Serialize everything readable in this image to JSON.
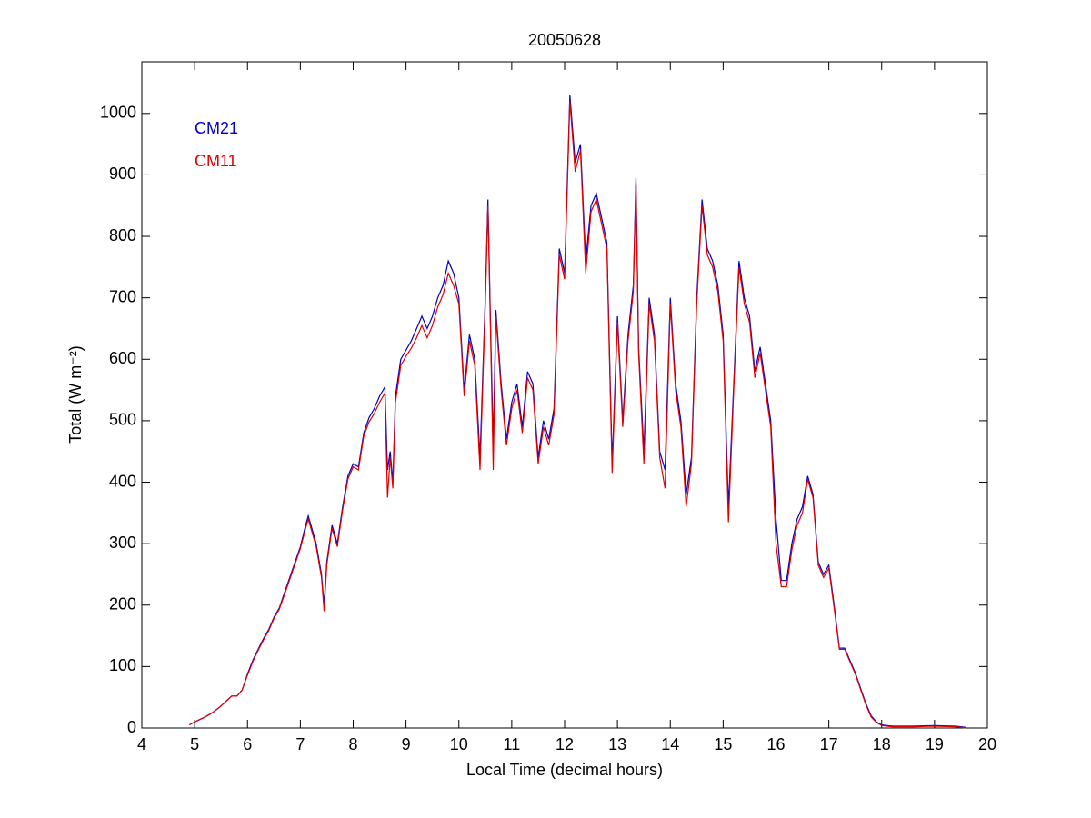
{
  "chart_data": {
    "type": "line",
    "title": "20050628",
    "xlabel": "Local Time (decimal hours)",
    "ylabel": "Total (W m⁻²)",
    "xlim": [
      4,
      20
    ],
    "xticks": [
      4,
      5,
      6,
      7,
      8,
      9,
      10,
      11,
      12,
      13,
      14,
      15,
      16,
      17,
      18,
      19,
      20
    ],
    "ylim": [
      0,
      1084
    ],
    "yticks": [
      0,
      100,
      200,
      300,
      400,
      500,
      600,
      700,
      800,
      900,
      1000
    ],
    "grid": false,
    "legend": "top-left",
    "x": [
      4.9,
      5.0,
      5.1,
      5.2,
      5.3,
      5.4,
      5.5,
      5.6,
      5.7,
      5.8,
      5.9,
      6.0,
      6.1,
      6.2,
      6.3,
      6.4,
      6.5,
      6.6,
      6.7,
      6.8,
      6.9,
      7.0,
      7.1,
      7.15,
      7.2,
      7.3,
      7.4,
      7.45,
      7.5,
      7.6,
      7.7,
      7.8,
      7.9,
      8.0,
      8.1,
      8.2,
      8.3,
      8.4,
      8.5,
      8.6,
      8.65,
      8.7,
      8.75,
      8.8,
      8.9,
      9.0,
      9.1,
      9.2,
      9.3,
      9.4,
      9.5,
      9.6,
      9.7,
      9.8,
      9.9,
      10.0,
      10.1,
      10.2,
      10.3,
      10.4,
      10.5,
      10.55,
      10.6,
      10.65,
      10.7,
      10.8,
      10.9,
      11.0,
      11.1,
      11.2,
      11.3,
      11.4,
      11.5,
      11.6,
      11.7,
      11.8,
      11.9,
      12.0,
      12.1,
      12.2,
      12.3,
      12.4,
      12.5,
      12.6,
      12.7,
      12.8,
      12.9,
      13.0,
      13.1,
      13.2,
      13.3,
      13.35,
      13.4,
      13.5,
      13.6,
      13.7,
      13.8,
      13.9,
      14.0,
      14.1,
      14.2,
      14.3,
      14.4,
      14.5,
      14.6,
      14.7,
      14.8,
      14.9,
      15.0,
      15.1,
      15.2,
      15.3,
      15.4,
      15.5,
      15.6,
      15.7,
      15.8,
      15.9,
      16.0,
      16.1,
      16.2,
      16.3,
      16.4,
      16.5,
      16.6,
      16.7,
      16.8,
      16.9,
      17.0,
      17.1,
      17.2,
      17.3,
      17.4,
      17.5,
      17.6,
      17.7,
      17.8,
      17.9,
      18.0,
      18.2,
      18.6,
      19.0,
      19.4,
      19.6
    ],
    "series": [
      {
        "name": "CM21",
        "color": "#0000c8",
        "values": [
          5,
          10,
          14,
          18,
          23,
          29,
          36,
          44,
          52,
          52,
          62,
          88,
          110,
          128,
          145,
          160,
          180,
          195,
          220,
          245,
          270,
          295,
          330,
          345,
          330,
          300,
          250,
          200,
          270,
          330,
          300,
          360,
          410,
          430,
          425,
          480,
          505,
          520,
          540,
          555,
          420,
          450,
          400,
          540,
          600,
          615,
          630,
          650,
          670,
          650,
          670,
          700,
          720,
          760,
          740,
          700,
          550,
          640,
          600,
          440,
          700,
          860,
          650,
          460,
          680,
          560,
          470,
          530,
          560,
          490,
          580,
          560,
          440,
          500,
          470,
          520,
          780,
          740,
          1030,
          920,
          950,
          760,
          850,
          870,
          830,
          790,
          430,
          670,
          500,
          640,
          720,
          895,
          620,
          450,
          700,
          640,
          450,
          420,
          700,
          560,
          500,
          380,
          440,
          700,
          860,
          780,
          760,
          720,
          640,
          360,
          560,
          760,
          700,
          670,
          580,
          620,
          560,
          500,
          340,
          240,
          240,
          300,
          340,
          360,
          410,
          380,
          270,
          250,
          265,
          200,
          130,
          130,
          110,
          90,
          65,
          40,
          20,
          10,
          5,
          3,
          3,
          4,
          3,
          1
        ]
      },
      {
        "name": "CM11",
        "color": "#e00000",
        "values": [
          5,
          10,
          14,
          18,
          23,
          29,
          36,
          44,
          52,
          52,
          62,
          86,
          108,
          126,
          143,
          158,
          178,
          193,
          217,
          242,
          267,
          292,
          325,
          340,
          325,
          295,
          245,
          190,
          265,
          325,
          295,
          355,
          405,
          425,
          420,
          475,
          498,
          512,
          530,
          545,
          375,
          440,
          390,
          530,
          590,
          605,
          618,
          635,
          655,
          635,
          655,
          685,
          705,
          740,
          720,
          690,
          540,
          630,
          590,
          420,
          690,
          850,
          640,
          420,
          670,
          550,
          460,
          520,
          550,
          480,
          570,
          550,
          430,
          490,
          460,
          510,
          770,
          730,
          1020,
          905,
          940,
          740,
          840,
          860,
          820,
          780,
          415,
          660,
          490,
          630,
          710,
          885,
          610,
          430,
          690,
          630,
          440,
          390,
          690,
          550,
          490,
          360,
          430,
          690,
          850,
          770,
          750,
          710,
          630,
          335,
          550,
          750,
          690,
          660,
          570,
          610,
          550,
          490,
          300,
          230,
          230,
          290,
          330,
          350,
          405,
          375,
          265,
          245,
          260,
          195,
          128,
          128,
          108,
          88,
          63,
          38,
          18,
          9,
          4,
          2,
          2,
          3,
          2,
          0
        ]
      }
    ]
  }
}
